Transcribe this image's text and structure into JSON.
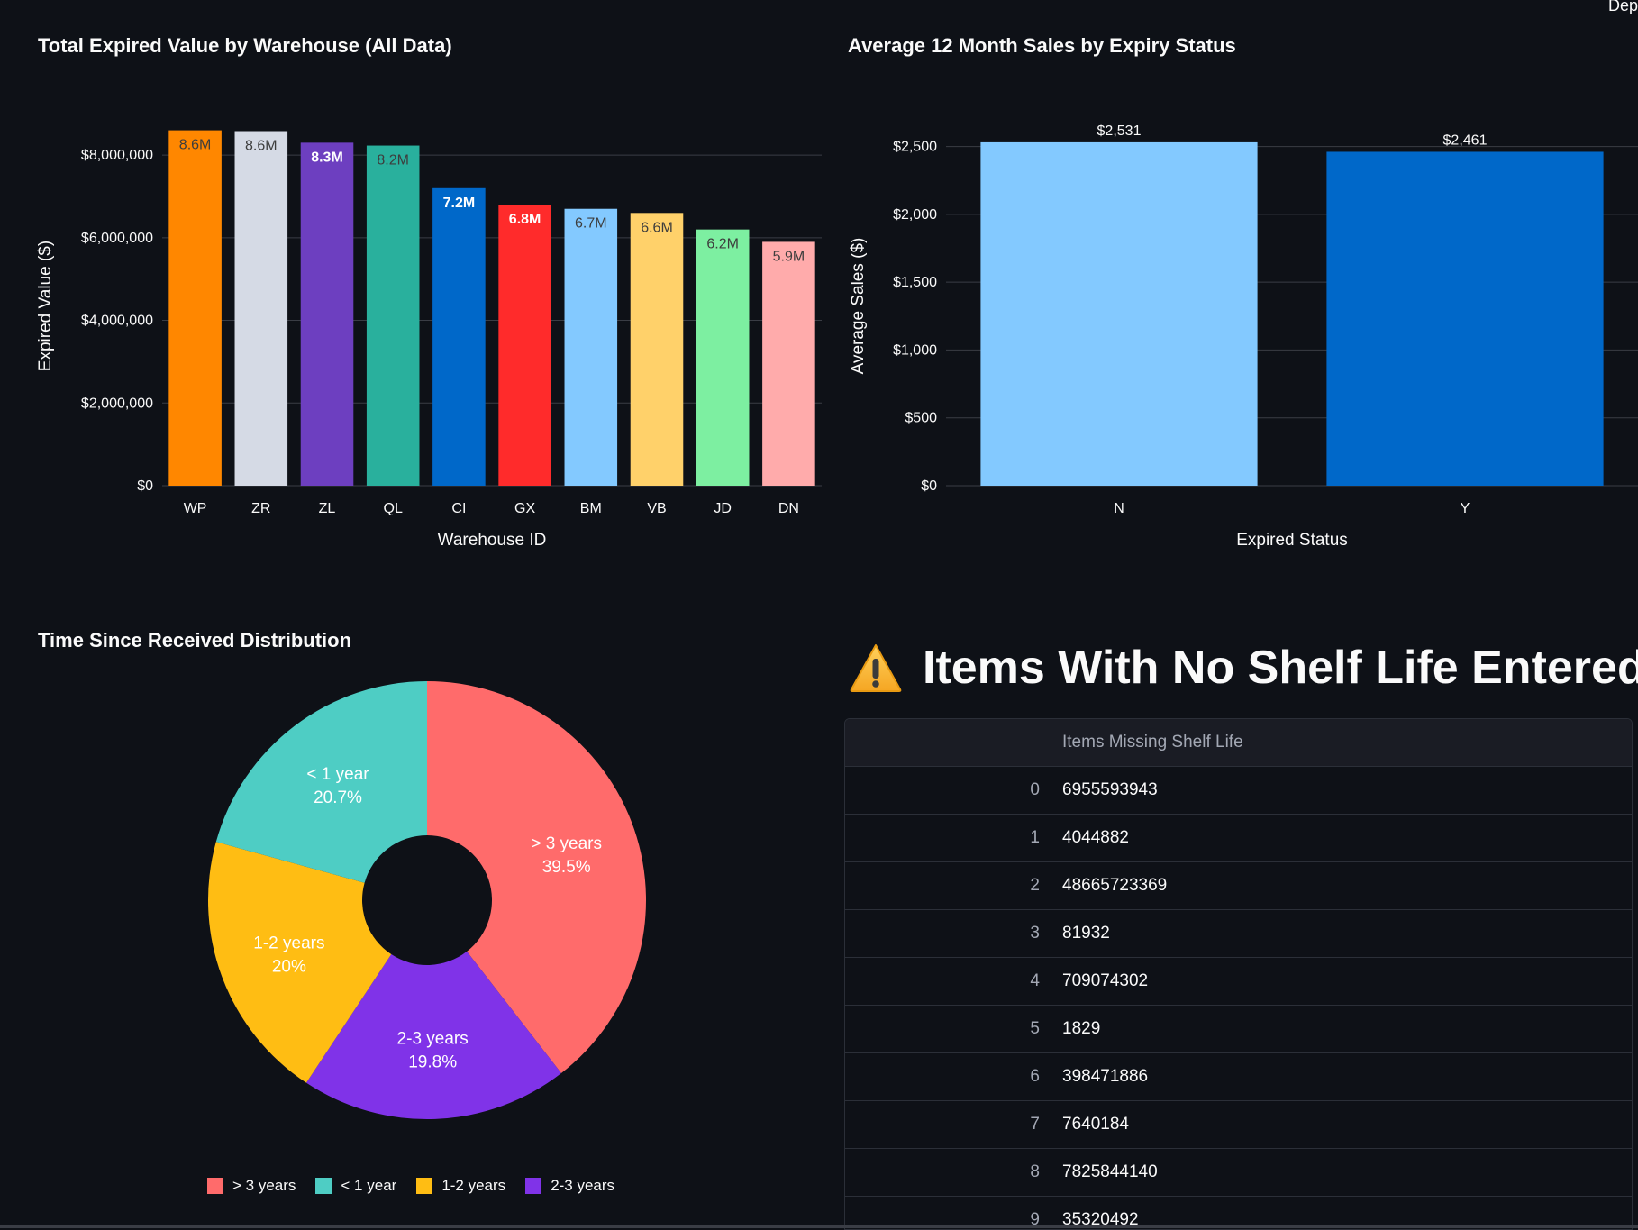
{
  "corner_label": "Dep",
  "chart_data": [
    {
      "type": "bar",
      "title": "Total Expired Value by Warehouse (All Data)",
      "xlabel": "Warehouse ID",
      "ylabel": "Expired Value ($)",
      "categories": [
        "WP",
        "ZR",
        "ZL",
        "QL",
        "CI",
        "GX",
        "BM",
        "VB",
        "JD",
        "DN"
      ],
      "values": [
        8600000,
        8580000,
        8300000,
        8230000,
        7200000,
        6800000,
        6700000,
        6600000,
        6200000,
        5900000
      ],
      "data_labels": [
        "8.6M",
        "8.6M",
        "8.3M",
        "8.2M",
        "7.2M",
        "6.8M",
        "6.7M",
        "6.6M",
        "6.2M",
        "5.9M"
      ],
      "colors": [
        "#ff8700",
        "#d5dae5",
        "#6d3fc0",
        "#29b09d",
        "#0068c9",
        "#ff2b2b",
        "#83c9ff",
        "#ffd16a",
        "#7defa1",
        "#ffabab"
      ],
      "label_colors": [
        "#3d3d3d",
        "#3d3d3d",
        "#ffffff",
        "#3d3d3d",
        "#ffffff",
        "#ffffff",
        "#3d3d3d",
        "#3d3d3d",
        "#3d3d3d",
        "#3d3d3d"
      ],
      "ylim": [
        0,
        8700000
      ],
      "yticks": [
        0,
        2000000,
        4000000,
        6000000,
        8000000
      ],
      "ytick_labels": [
        "$0",
        "$2,000,000",
        "$4,000,000",
        "$6,000,000",
        "$8,000,000"
      ],
      "grid": true,
      "legend": "none"
    },
    {
      "type": "bar",
      "title": "Average 12 Month Sales by Expiry Status",
      "xlabel": "Expired Status",
      "ylabel": "Average Sales ($)",
      "categories": [
        "N",
        "Y"
      ],
      "values": [
        2531,
        2461
      ],
      "data_labels": [
        "$2,531",
        "$2,461"
      ],
      "colors": [
        "#83c9ff",
        "#0068c9"
      ],
      "ylim": [
        0,
        2650
      ],
      "yticks": [
        0,
        500,
        1000,
        1500,
        2000,
        2500
      ],
      "ytick_labels": [
        "$0",
        "$500",
        "$1,000",
        "$1,500",
        "$2,000",
        "$2,500"
      ],
      "grid": true,
      "legend": "none"
    },
    {
      "type": "pie",
      "title": "Time Since Received Distribution",
      "hole": true,
      "slices": [
        {
          "label": "> 3 years",
          "percent": 39.5,
          "percent_label": "39.5%",
          "color": "#ff6b6b"
        },
        {
          "label": "2-3 years",
          "percent": 19.8,
          "percent_label": "19.8%",
          "color": "#8033e8"
        },
        {
          "label": "1-2 years",
          "percent": 20.0,
          "percent_label": "20%",
          "color": "#ffbd13"
        },
        {
          "label": "< 1 year",
          "percent": 20.7,
          "percent_label": "20.7%",
          "color": "#4ecdc4"
        }
      ],
      "legend_order": [
        "> 3 years",
        "< 1 year",
        "1-2 years",
        "2-3 years"
      ],
      "legend": "bottom"
    }
  ],
  "missing_shelf_life": {
    "heading": "Items With No Shelf Life Entered",
    "warning_icon": "warning-icon",
    "column_header": "Items Missing Shelf Life",
    "rows": [
      {
        "index": "0",
        "value": "6955593943"
      },
      {
        "index": "1",
        "value": "4044882"
      },
      {
        "index": "2",
        "value": "48665723369"
      },
      {
        "index": "3",
        "value": "81932"
      },
      {
        "index": "4",
        "value": "709074302"
      },
      {
        "index": "5",
        "value": "1829"
      },
      {
        "index": "6",
        "value": "398471886"
      },
      {
        "index": "7",
        "value": "7640184"
      },
      {
        "index": "8",
        "value": "7825844140"
      },
      {
        "index": "9",
        "value": "35320492"
      }
    ]
  }
}
